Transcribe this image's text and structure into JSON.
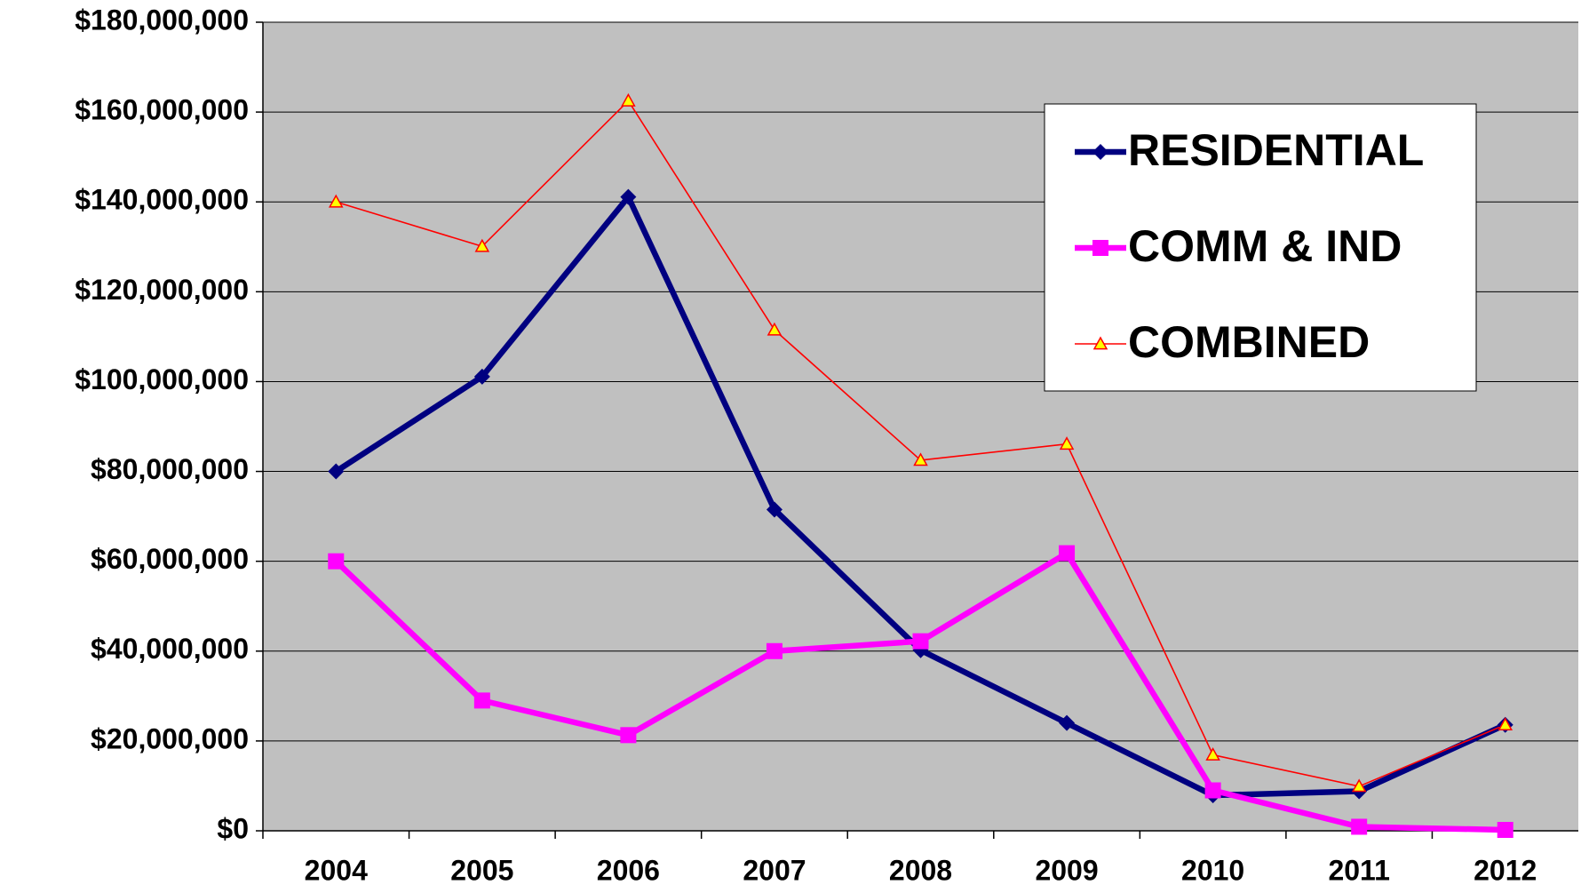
{
  "chart_data": {
    "type": "line",
    "categories": [
      "2004",
      "2005",
      "2006",
      "2007",
      "2008",
      "2009",
      "2010",
      "2011",
      "2012"
    ],
    "series": [
      {
        "name": "RESIDENTIAL",
        "color": "#000080",
        "marker": "diamond",
        "values": [
          80000000,
          101100000,
          141100000,
          71500000,
          40200000,
          24000000,
          7900000,
          8800000,
          23600000
        ]
      },
      {
        "name": "COMM & IND",
        "color": "#ff00ff",
        "marker": "square",
        "values": [
          60000000,
          29000000,
          21300000,
          40000000,
          42200000,
          61800000,
          9000000,
          900000,
          200000
        ]
      },
      {
        "name": "COMBINED",
        "color": "#ff0000",
        "marker": "triangle",
        "marker_fill": "#ffff00",
        "values": [
          140000000,
          130100000,
          162500000,
          111500000,
          82500000,
          86100000,
          16900000,
          9900000,
          23600000
        ]
      }
    ],
    "ylim": [
      0,
      180000000
    ],
    "yticks": [
      {
        "value": 0,
        "label": "$0"
      },
      {
        "value": 20000000,
        "label": "$20,000,000"
      },
      {
        "value": 40000000,
        "label": "$40,000,000"
      },
      {
        "value": 60000000,
        "label": "$60,000,000"
      },
      {
        "value": 80000000,
        "label": "$80,000,000"
      },
      {
        "value": 100000000,
        "label": "$100,000,000"
      },
      {
        "value": 120000000,
        "label": "$120,000,000"
      },
      {
        "value": 140000000,
        "label": "$140,000,000"
      },
      {
        "value": 160000000,
        "label": "$160,000,000"
      },
      {
        "value": 180000000,
        "label": "$180,000,000"
      }
    ],
    "grid": true,
    "plot_background": "#c0c0c0",
    "legend_position": "upper right"
  }
}
